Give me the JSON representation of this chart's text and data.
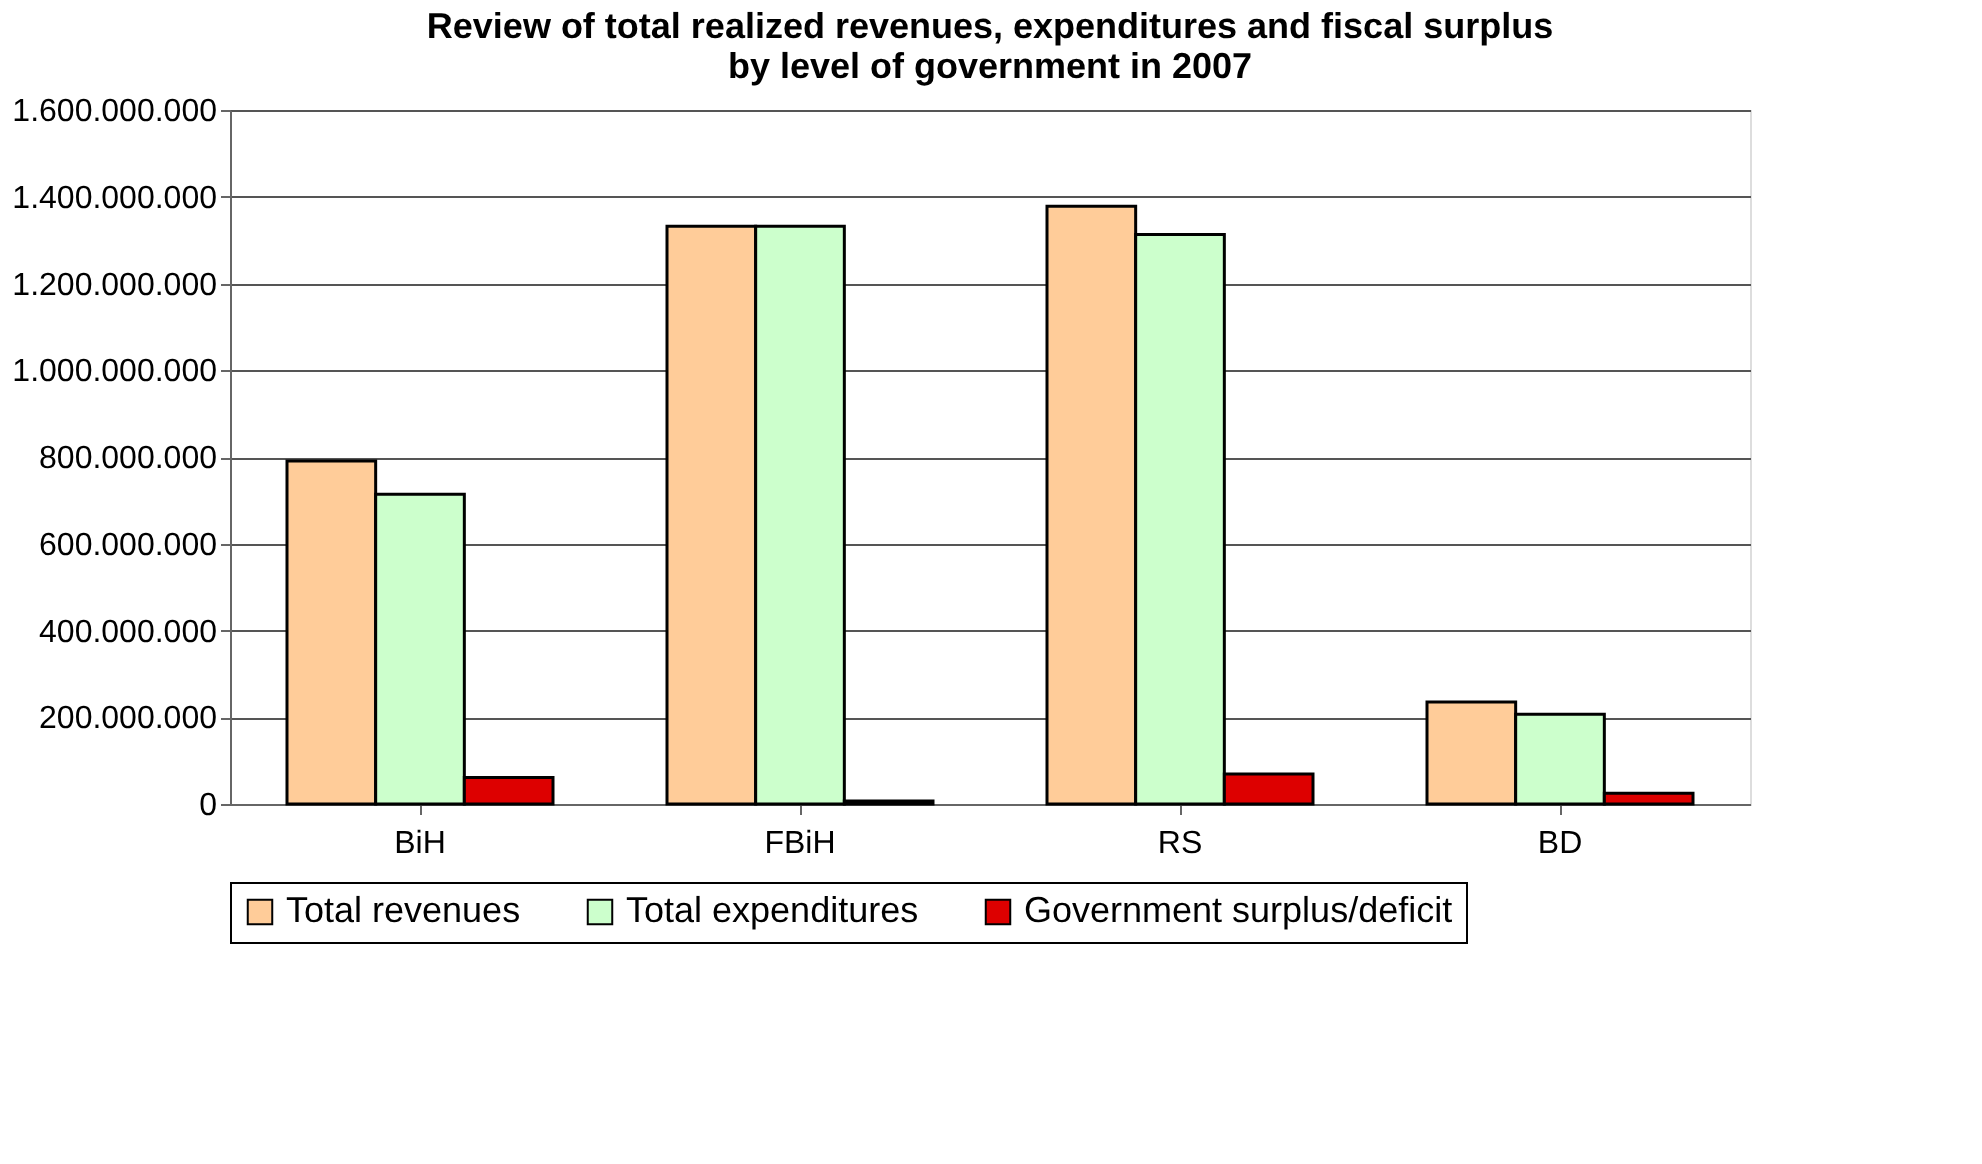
{
  "chart_data": {
    "type": "bar",
    "title": [
      "Review of total realized revenues, expenditures and fiscal surplus",
      "by level of government in 2007"
    ],
    "categories": [
      "BiH",
      "FBiH",
      "RS",
      "BD"
    ],
    "series": [
      {
        "name": "Total revenues",
        "color": "#ffcc99",
        "values": [
          791000000,
          1332000000,
          1378000000,
          235000000
        ]
      },
      {
        "name": "Total expenditures",
        "color": "#ccffcc",
        "values": [
          714000000,
          1332000000,
          1313000000,
          207000000
        ]
      },
      {
        "name": "Government surplus/deficit",
        "color": "#dd0000",
        "values": [
          61000000,
          7000000,
          69000000,
          25000000
        ]
      }
    ],
    "ylim": [
      0,
      1600000000
    ],
    "yticks": [
      {
        "value": 0,
        "label": "0"
      },
      {
        "value": 200000000,
        "label": "200.000.000"
      },
      {
        "value": 400000000,
        "label": "400.000.000"
      },
      {
        "value": 600000000,
        "label": "600.000.000"
      },
      {
        "value": 800000000,
        "label": "800.000.000"
      },
      {
        "value": 1000000000,
        "label": "1.000.000.000"
      },
      {
        "value": 1200000000,
        "label": "1.200.000.000"
      },
      {
        "value": 1400000000,
        "label": "1.400.000.000"
      },
      {
        "value": 1600000000,
        "label": "1.600.000.000"
      }
    ],
    "grid": "y",
    "legend": "bottom"
  }
}
